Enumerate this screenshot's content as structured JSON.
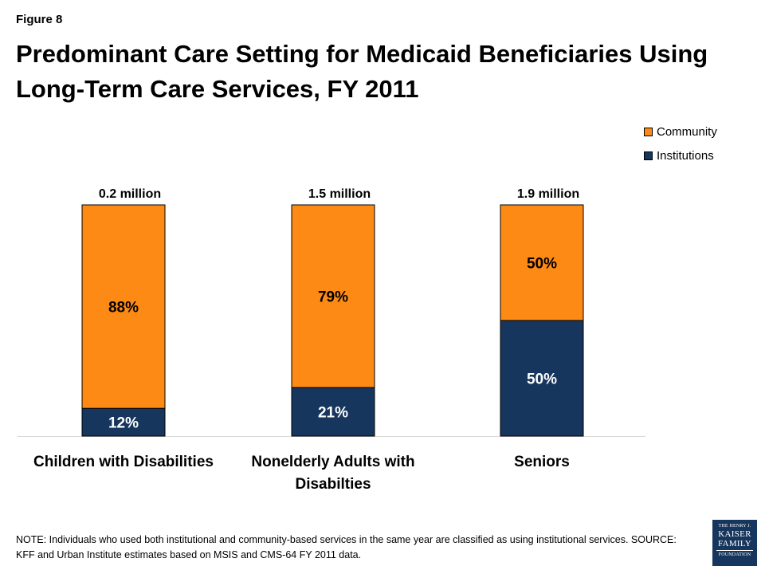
{
  "figure_label": "Figure 8",
  "title": "Predominant Care Setting for Medicaid Beneficiaries Using Long-Term Care Services, FY 2011",
  "colors": {
    "community": "#fd8a14",
    "institutions": "#17365d",
    "bar_label_light": "#ffffff",
    "bar_label_dark": "#000000"
  },
  "chart_data": {
    "type": "bar",
    "stacked": true,
    "normalized": true,
    "title": "Predominant Care Setting for Medicaid Beneficiaries Using Long-Term Care Services, FY 2011",
    "categories": [
      [
        "Children with Disabilities"
      ],
      [
        "Nonelderly Adults with",
        "Disabilties"
      ],
      [
        "Seniors"
      ]
    ],
    "totals": [
      "0.2 million",
      "1.5 million",
      "1.9 million"
    ],
    "series": [
      {
        "name": "Institutions",
        "values": [
          12,
          21,
          50
        ],
        "labels": [
          "12%",
          "21%",
          "50%"
        ]
      },
      {
        "name": "Community",
        "values": [
          88,
          79,
          50
        ],
        "labels": [
          "88%",
          "79%",
          "50%"
        ]
      }
    ],
    "ylim": [
      0,
      100
    ],
    "grid": false,
    "legend": "top-right"
  },
  "legend": {
    "items": [
      {
        "label": "Community",
        "color": "#fd8a14"
      },
      {
        "label": "Institutions",
        "color": "#17365d"
      }
    ]
  },
  "note": "NOTE:  Individuals who used both institutional and community-based services in the same year are classified as using institutional services. SOURCE:  KFF and Urban Institute estimates based on MSIS and CMS-64 FY 2011 data.",
  "logo": {
    "line1": "THE HENRY J.",
    "line2": "KAISER",
    "line3": "FAMILY",
    "line4": "FOUNDATION"
  }
}
